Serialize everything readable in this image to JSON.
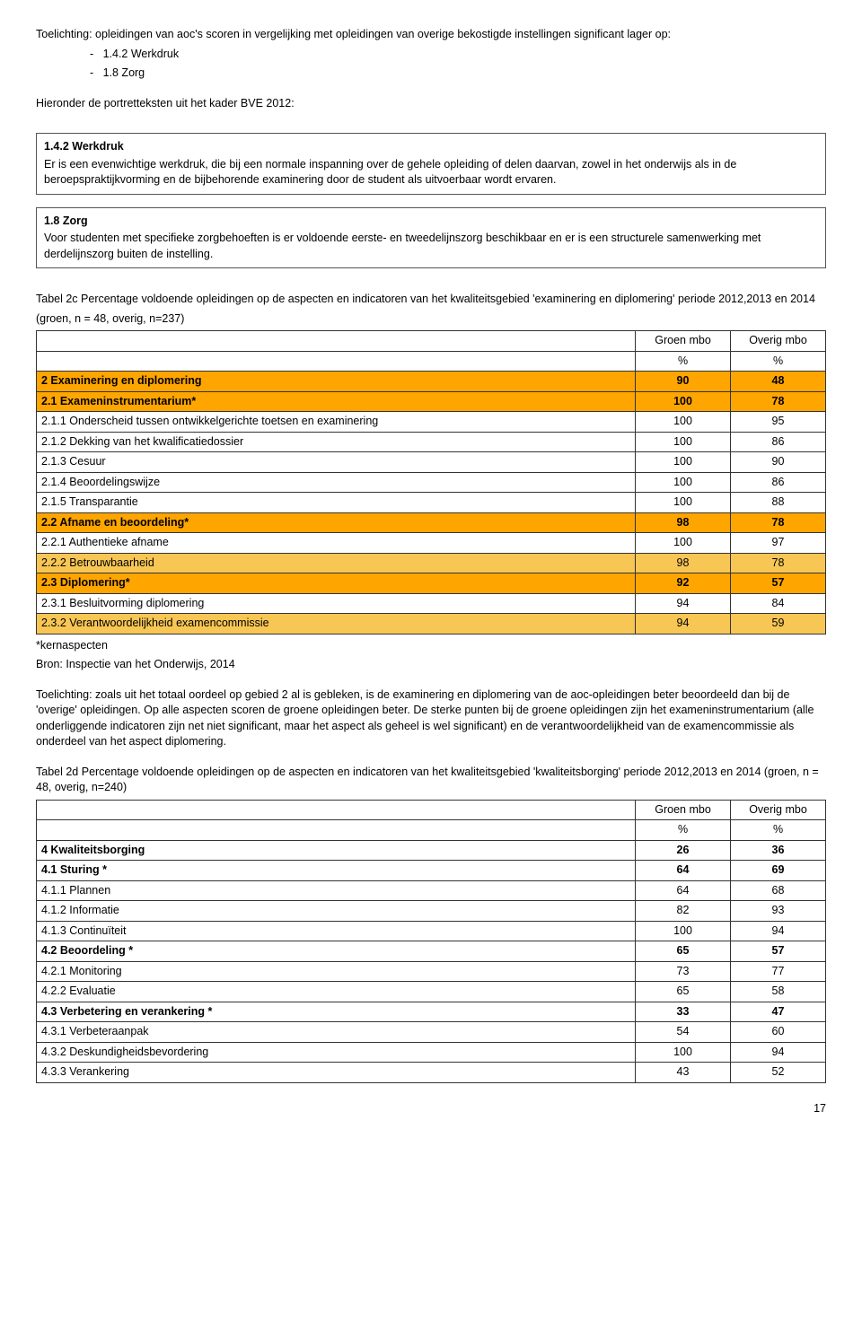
{
  "intro": {
    "line1": "Toelichting: opleidingen van aoc's scoren in vergelijking met opleidingen van overige bekostigde instellingen significant lager op:",
    "bullet1": "-   1.4.2 Werkdruk",
    "bullet2": "-   1.8 Zorg",
    "line2": "Hieronder de portretteksten uit het kader BVE 2012:"
  },
  "box1": {
    "title": "1.4.2 Werkdruk",
    "body": "Er is een evenwichtige werkdruk, die bij een normale inspanning over de gehele opleiding of delen daarvan, zowel in het onderwijs als in de beroepspraktijkvorming en de bijbehorende examinering door de student als uitvoerbaar wordt ervaren."
  },
  "box2": {
    "title": "1.8 Zorg",
    "body": "Voor studenten met specifieke zorgbehoeften is er voldoende eerste- en tweedelijnszorg beschikbaar en er is een structurele samenwerking met derdelijnszorg buiten de instelling."
  },
  "table2c": {
    "caption1": "Tabel 2c Percentage voldoende opleidingen  op de aspecten en indicatoren van het kwaliteitsgebied 'examinering en diplomering' periode 2012,2013 en 2014",
    "caption2": "(groen, n = 48, overig, n=237)",
    "headers": {
      "col1": "Groen mbo",
      "col2": "Overig mbo",
      "unit": "%"
    },
    "colors": {
      "orange_bold": "#ffa500",
      "orange_light": "#f7c654",
      "white": "#ffffff"
    },
    "rows": [
      {
        "label": "2 Examinering en diplomering",
        "v1": "90",
        "v2": "48",
        "style": "orange_bold",
        "bold": true
      },
      {
        "label": "2.1 Exameninstrumentarium*",
        "v1": "100",
        "v2": "78",
        "style": "orange_bold",
        "bold": true
      },
      {
        "label": "2.1.1 Onderscheid tussen ontwikkelgerichte toetsen en examinering",
        "v1": "100",
        "v2": "95",
        "style": "white",
        "bold": false
      },
      {
        "label": "2.1.2 Dekking van het kwalificatiedossier",
        "v1": "100",
        "v2": "86",
        "style": "white",
        "bold": false
      },
      {
        "label": "2.1.3 Cesuur",
        "v1": "100",
        "v2": "90",
        "style": "white",
        "bold": false
      },
      {
        "label": "2.1.4 Beoordelingswijze",
        "v1": "100",
        "v2": "86",
        "style": "white",
        "bold": false
      },
      {
        "label": "2.1.5 Transparantie",
        "v1": "100",
        "v2": "88",
        "style": "white",
        "bold": false
      },
      {
        "label": "2.2 Afname en beoordeling*",
        "v1": "98",
        "v2": "78",
        "style": "orange_bold",
        "bold": true
      },
      {
        "label": "2.2.1 Authentieke afname",
        "v1": "100",
        "v2": "97",
        "style": "white",
        "bold": false
      },
      {
        "label": "2.2.2 Betrouwbaarheid",
        "v1": "98",
        "v2": "78",
        "style": "orange_light",
        "bold": false
      },
      {
        "label": "2.3 Diplomering*",
        "v1": "92",
        "v2": "57",
        "style": "orange_bold",
        "bold": true
      },
      {
        "label": "2.3.1 Besluitvorming diplomering",
        "v1": "94",
        "v2": "84",
        "style": "white",
        "bold": false
      },
      {
        "label": "2.3.2 Verantwoordelijkheid examencommissie",
        "v1": "94",
        "v2": "59",
        "style": "orange_light",
        "bold": false
      }
    ],
    "footnote1": "*kernaspecten",
    "footnote2": "Bron: Inspectie van het Onderwijs, 2014"
  },
  "toelichting2c": "Toelichting: zoals uit het totaal oordeel op gebied 2 al is gebleken, is de examinering en diplomering van de aoc-opleidingen beter beoordeeld dan bij de 'overige' opleidingen. Op alle aspecten scoren de groene opleidingen beter. De sterke punten bij de groene opleidingen zijn het exameninstrumentarium (alle onderliggende indicatoren zijn net niet significant, maar het aspect als geheel is wel significant) en de verantwoordelijkheid van de examencommissie als onderdeel van het aspect diplomering.",
  "table2d": {
    "caption": "Tabel 2d Percentage voldoende opleidingen op de aspecten en indicatoren van het kwaliteitsgebied 'kwaliteitsborging' periode 2012,2013 en 2014  (groen, n = 48, overig, n=240)",
    "headers": {
      "col1": "Groen mbo",
      "col2": "Overig mbo",
      "unit": "%"
    },
    "rows": [
      {
        "label": "4 Kwaliteitsborging",
        "v1": "26",
        "v2": "36",
        "bold": true
      },
      {
        "label": "4.1 Sturing *",
        "v1": "64",
        "v2": "69",
        "bold": true
      },
      {
        "label": "4.1.1 Plannen",
        "v1": "64",
        "v2": "68",
        "bold": false
      },
      {
        "label": "4.1.2 Informatie",
        "v1": "82",
        "v2": "93",
        "bold": false
      },
      {
        "label": "4.1.3 Continuïteit",
        "v1": "100",
        "v2": "94",
        "bold": false
      },
      {
        "label": "4.2 Beoordeling *",
        "v1": "65",
        "v2": "57",
        "bold": true
      },
      {
        "label": "4.2.1 Monitoring",
        "v1": "73",
        "v2": "77",
        "bold": false
      },
      {
        "label": "4.2.2 Evaluatie",
        "v1": "65",
        "v2": "58",
        "bold": false
      },
      {
        "label": "4.3 Verbetering en verankering *",
        "v1": "33",
        "v2": "47",
        "bold": true
      },
      {
        "label": "4.3.1 Verbeteraanpak",
        "v1": "54",
        "v2": "60",
        "bold": false
      },
      {
        "label": "4.3.2 Deskundigheidsbevordering",
        "v1": "100",
        "v2": "94",
        "bold": false
      },
      {
        "label": "4.3.3 Verankering",
        "v1": "43",
        "v2": "52",
        "bold": false
      }
    ]
  },
  "pagenum": "17"
}
